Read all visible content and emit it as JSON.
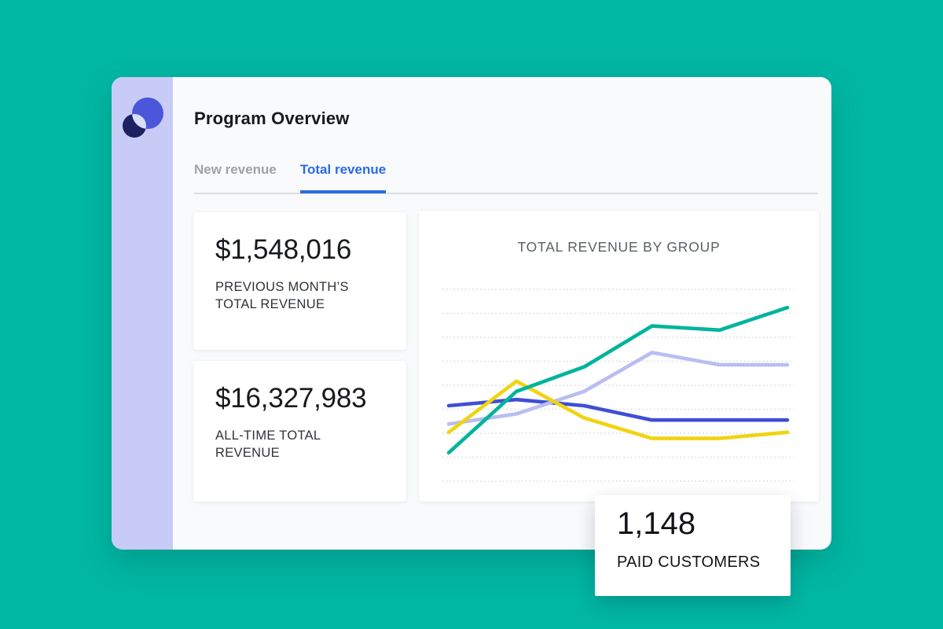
{
  "header": {
    "title": "Program Overview"
  },
  "logo": {
    "name": "app-logo",
    "circle_color": "#4A57DB",
    "dark_color": "#1B2161",
    "overlap_color": "#D9DDF8"
  },
  "theme": {
    "background_teal": "#00B7A4",
    "sidebar_lavender": "#C7CBF6",
    "panel_background": "#F9FAFC",
    "tab_active_blue": "#2A6BE6",
    "tab_inactive_gray": "#9DA2A8"
  },
  "tabs": [
    {
      "label": "New revenue",
      "active": false
    },
    {
      "label": "Total revenue",
      "active": true
    }
  ],
  "metric_cards": [
    {
      "value": "$1,548,016",
      "label": "PREVIOUS MONTH’S\nTOTAL REVENUE"
    },
    {
      "value": "$16,327,983",
      "label": "ALL-TIME TOTAL\nREVENUE"
    }
  ],
  "paid_customers_card": {
    "value": "1,148",
    "label": "PAID CUSTOMERS"
  },
  "chart_data": {
    "type": "line",
    "title": "TOTAL REVENUE BY GROUP",
    "x": [
      1,
      2,
      3,
      4,
      5,
      6
    ],
    "x_tick_labels_visible": false,
    "y_tick_labels_visible": false,
    "ylim": [
      0,
      100
    ],
    "value_scale_note": "relative scale 0-100; chart shows no numeric axis labels",
    "grid": {
      "orientation": "horizontal",
      "style": "dotted",
      "count": 9
    },
    "legend_position": "none",
    "series": [
      {
        "name": "blue-group",
        "color": "#3F4ED6",
        "values": [
          40,
          43,
          40,
          33,
          33,
          33
        ]
      },
      {
        "name": "lavender-group",
        "color": "#B8BDF2",
        "values": [
          31,
          36,
          47,
          66,
          60,
          60
        ]
      },
      {
        "name": "yellow-group",
        "color": "#F0D410",
        "values": [
          27,
          52,
          34,
          24,
          24,
          27
        ]
      },
      {
        "name": "teal-group",
        "color": "#00B49B",
        "values": [
          17,
          47,
          59,
          79,
          77,
          88
        ]
      }
    ]
  }
}
